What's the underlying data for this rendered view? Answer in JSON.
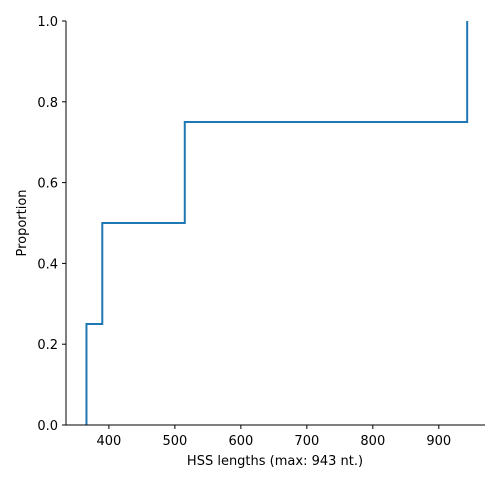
{
  "chart_data": {
    "type": "line",
    "subtype": "ecdf-step",
    "xlabel": "HSS lengths (max: 943 nt.)",
    "ylabel": "Proportion",
    "xlim": [
      335,
      970
    ],
    "ylim": [
      0,
      1
    ],
    "x_ticks": [
      400,
      500,
      600,
      700,
      800,
      900
    ],
    "y_ticks": [
      "0.0",
      "0.2",
      "0.4",
      "0.6",
      "0.8",
      "1.0"
    ],
    "grid": false,
    "color": "#1f77b4",
    "series": [
      {
        "x": [
          366,
          366,
          390,
          390,
          515,
          515,
          943,
          943
        ],
        "y": [
          0,
          0.25,
          0.25,
          0.5,
          0.5,
          0.75,
          0.75,
          1.0
        ]
      }
    ]
  }
}
